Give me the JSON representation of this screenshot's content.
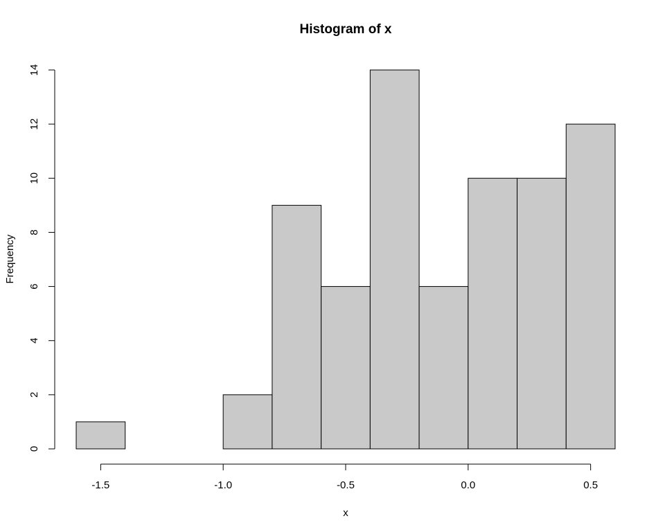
{
  "chart_data": {
    "type": "bar",
    "subtype": "histogram",
    "title": "Histogram of x",
    "xlabel": "x",
    "ylabel": "Frequency",
    "bin_edges": [
      -1.6,
      -1.4,
      -1.2,
      -1.0,
      -0.8,
      -0.6,
      -0.4,
      -0.2,
      0.0,
      0.2,
      0.4,
      0.6
    ],
    "values": [
      1,
      0,
      0,
      2,
      9,
      6,
      14,
      6,
      10,
      10,
      12
    ],
    "xlim": [
      -1.6,
      0.6
    ],
    "ylim": [
      0,
      14
    ],
    "x_ticks": [
      -1.5,
      -1.0,
      -0.5,
      0.0,
      0.5
    ],
    "x_tick_labels": [
      "-1.5",
      "-1.0",
      "-0.5",
      "0.0",
      "0.5"
    ],
    "y_ticks": [
      0,
      2,
      4,
      6,
      8,
      10,
      12,
      14
    ],
    "y_tick_labels": [
      "0",
      "2",
      "4",
      "6",
      "8",
      "10",
      "12",
      "14"
    ],
    "bar_fill": "#c9c9c9",
    "bar_stroke": "#000000",
    "grid": false,
    "legend": "none"
  }
}
